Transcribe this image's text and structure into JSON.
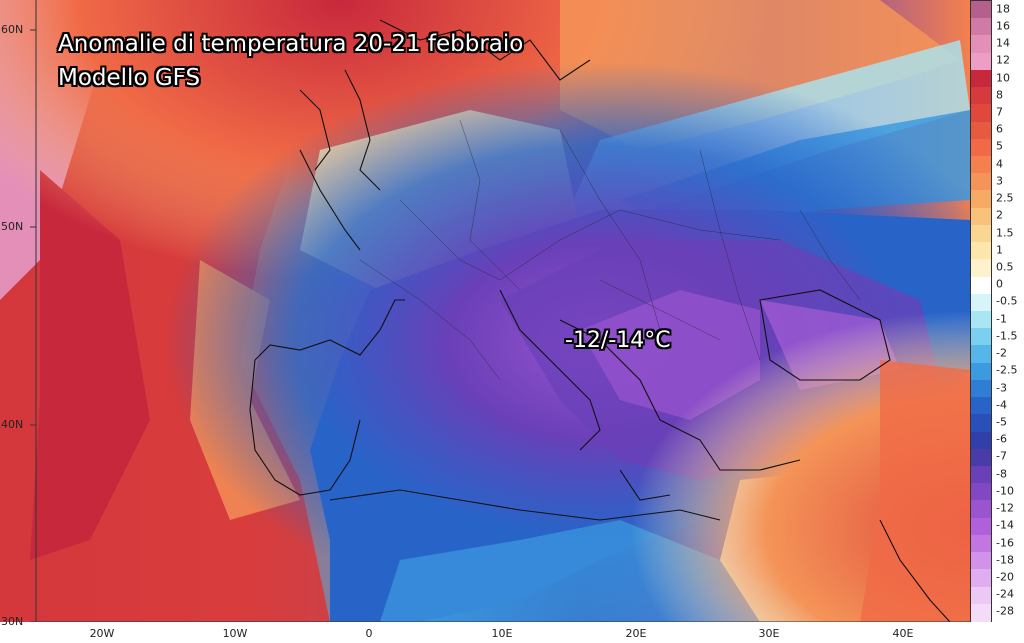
{
  "map": {
    "title_line1": "Anomalie di temperatura 20-21 febbraio",
    "title_line2": "Modello GFS",
    "annotation": "-12/-14°C",
    "lat_labels": [
      "60N",
      "50N",
      "40N",
      "30N"
    ],
    "lon_labels": [
      "20W",
      "10W",
      "0",
      "10E",
      "20E",
      "30E",
      "40E"
    ]
  },
  "colorbar": {
    "levels": [
      "18",
      "16",
      "14",
      "12",
      "10",
      "8",
      "7",
      "6",
      "5",
      "4",
      "3",
      "2.5",
      "2",
      "1.5",
      "1",
      "0.5",
      "0",
      "-0.5",
      "-1",
      "-1.5",
      "-2",
      "-2.5",
      "-3",
      "-4",
      "-5",
      "-6",
      "-7",
      "-8",
      "-10",
      "-12",
      "-14",
      "-16",
      "-18",
      "-20",
      "-24",
      "-28"
    ],
    "colors": [
      "#b45f8c",
      "#d27aa6",
      "#e48fb8",
      "#ee9ec6",
      "#c8283c",
      "#d63a3c",
      "#e0483c",
      "#e85a40",
      "#f06a46",
      "#f4804e",
      "#f49458",
      "#f6aa64",
      "#f8c27a",
      "#fad692",
      "#fce6ac",
      "#fef2cc",
      "#ffffff",
      "#d6f4fa",
      "#a8e6f4",
      "#7ad0ee",
      "#56b6ea",
      "#3c9ae0",
      "#2e7ed6",
      "#2864c8",
      "#2850b8",
      "#3040a8",
      "#4a3ca8",
      "#6a40b8",
      "#8248c4",
      "#9a54d0",
      "#b060da",
      "#c276e2",
      "#d292ea",
      "#e0aef0",
      "#ecc8f4",
      "#f4dcf8"
    ]
  }
}
